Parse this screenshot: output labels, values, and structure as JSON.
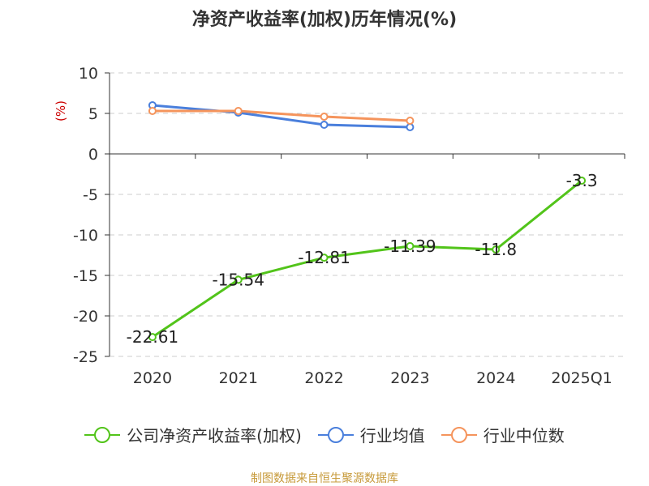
{
  "chart_data": {
    "type": "line",
    "title": "净资产收益率(加权)历年情况(%)",
    "ylabel": "(%)",
    "categories": [
      "2020",
      "2021",
      "2022",
      "2023",
      "2024",
      "2025Q1"
    ],
    "ylim": [
      -25,
      10
    ],
    "yticks": [
      10,
      5,
      0,
      -5,
      -10,
      -15,
      -20,
      -25
    ],
    "grid": true,
    "legend_position": "bottom",
    "series": [
      {
        "name": "公司净资产收益率(加权)",
        "color": "#52c41a",
        "values": [
          -22.61,
          -15.54,
          -12.81,
          -11.39,
          -11.8,
          -3.3
        ],
        "labels": [
          "-22.61",
          "-15.54",
          "-12.81",
          "-11.39",
          "-11.8",
          "-3.3"
        ]
      },
      {
        "name": "行业均值",
        "color": "#4a7fdc",
        "values": [
          6.0,
          5.1,
          3.6,
          3.3,
          null,
          null
        ]
      },
      {
        "name": "行业中位数",
        "color": "#f5945c",
        "values": [
          5.3,
          5.3,
          4.6,
          4.1,
          null,
          null
        ]
      }
    ]
  },
  "source": "制图数据来自恒生聚源数据库"
}
